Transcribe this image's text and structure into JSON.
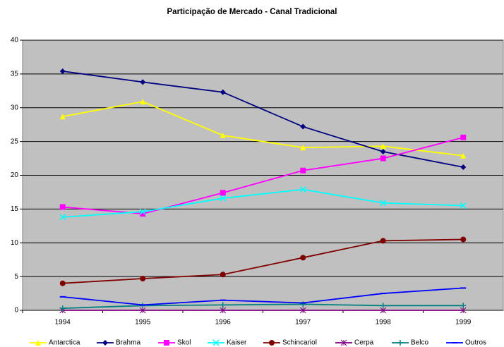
{
  "chart_data": {
    "type": "line",
    "title": "Participação de Mercado - Canal Tradicional",
    "categories": [
      "1994",
      "1995",
      "1996",
      "1997",
      "1998",
      "1999"
    ],
    "series": [
      {
        "name": "Antarctica",
        "color": "#ffff00",
        "marker": "triangle",
        "values": [
          28.7,
          30.9,
          25.9,
          24.1,
          24.3,
          22.9
        ]
      },
      {
        "name": "Brahma",
        "color": "#000080",
        "marker": "diamond",
        "values": [
          35.4,
          33.8,
          32.3,
          27.2,
          23.5,
          21.2
        ]
      },
      {
        "name": "Skol",
        "color": "#ff00ff",
        "marker": "square",
        "values": [
          15.3,
          14.3,
          17.4,
          20.7,
          22.5,
          25.6
        ]
      },
      {
        "name": "Kaiser",
        "color": "#00ffff",
        "marker": "x",
        "values": [
          13.8,
          14.6,
          16.6,
          17.9,
          15.9,
          15.5
        ]
      },
      {
        "name": "Schincariol",
        "color": "#800000",
        "marker": "circle",
        "values": [
          4.0,
          4.7,
          5.3,
          7.8,
          10.3,
          10.5
        ]
      },
      {
        "name": "Cerpa",
        "color": "#800080",
        "marker": "star",
        "values": [
          0,
          0,
          0,
          0,
          0,
          0
        ]
      },
      {
        "name": "Belco",
        "color": "#008080",
        "marker": "plus",
        "values": [
          0.3,
          0.7,
          0.8,
          0.9,
          0.7,
          0.7
        ]
      },
      {
        "name": "Outros",
        "color": "#0000ff",
        "marker": "dash",
        "values": [
          2.0,
          0.8,
          1.5,
          1.1,
          2.5,
          3.3
        ]
      }
    ],
    "ylim": [
      0,
      40
    ],
    "yticks": [
      0,
      5,
      10,
      15,
      20,
      25,
      30,
      35,
      40
    ],
    "grid": true,
    "legend": "bottom"
  }
}
